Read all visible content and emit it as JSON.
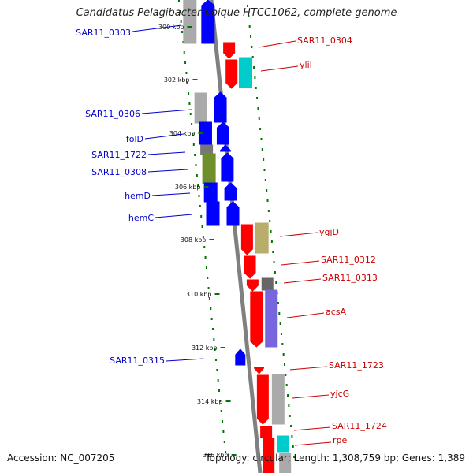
{
  "header": {
    "title": "Candidatus Pelagibacter ubique HTCC1062, complete genome"
  },
  "footer": {
    "accession": "Accession: NC_007205",
    "summary": "Topology: circular; Length: 1,308,759 bp; Genes: 1,389"
  },
  "colors": {
    "reverse_label": "#0000cc",
    "forward_label": "#cc0000",
    "cds_reverse": "#0000ff",
    "cds_forward": "#ff0000",
    "gc_dots": "#007700",
    "backbone": "#808080"
  },
  "ticks": [
    "300 kbp",
    "302 kbp",
    "304 kbp",
    "306 kbp",
    "308 kbp",
    "310 kbp",
    "312 kbp",
    "314 kbp",
    "316 kbp"
  ],
  "genes_reverse": [
    {
      "name": "SAR11_0303"
    },
    {
      "name": "SAR11_0306"
    },
    {
      "name": "folD"
    },
    {
      "name": "SAR11_1722"
    },
    {
      "name": "SAR11_0308"
    },
    {
      "name": "hemD"
    },
    {
      "name": "hemC"
    },
    {
      "name": "SAR11_0315"
    }
  ],
  "genes_forward": [
    {
      "name": "SAR11_0304"
    },
    {
      "name": "yliI"
    },
    {
      "name": "ygjD"
    },
    {
      "name": "SAR11_0312"
    },
    {
      "name": "SAR11_0313"
    },
    {
      "name": "acsA"
    },
    {
      "name": "SAR11_1723"
    },
    {
      "name": "yjcG"
    },
    {
      "name": "SAR11_1724"
    },
    {
      "name": "rpe"
    }
  ]
}
